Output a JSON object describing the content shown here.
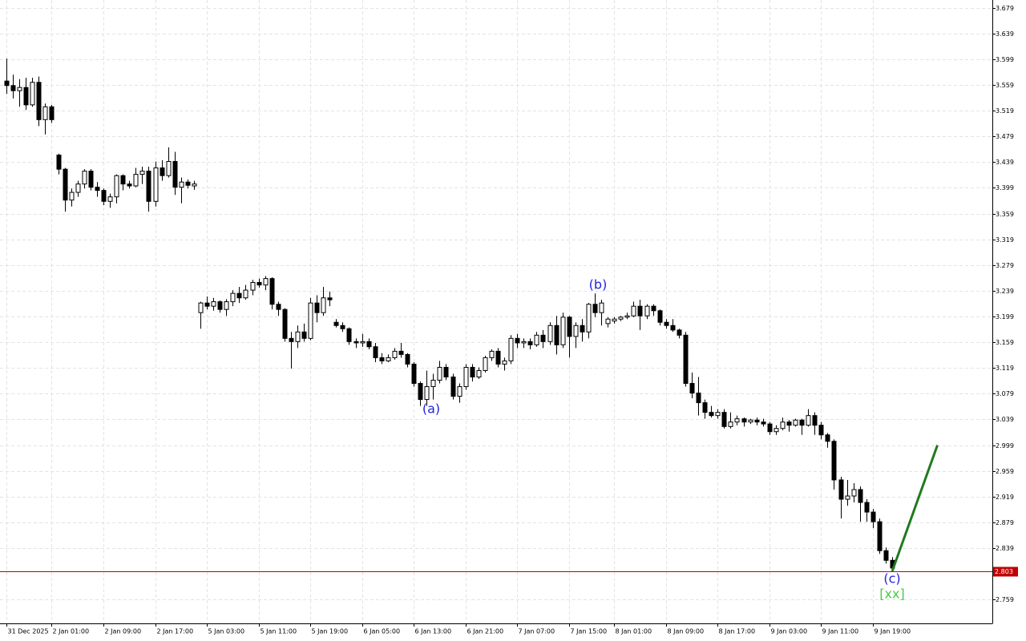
{
  "chart_data": {
    "type": "candlestick",
    "categories": [
      "31 Dec 2025",
      null,
      null,
      null,
      null,
      null,
      null,
      "2 Jan 01:00",
      null,
      null,
      null,
      null,
      null,
      null,
      null,
      "2 Jan 09:00",
      null,
      null,
      null,
      null,
      null,
      null,
      null,
      "2 Jan 17:00",
      null,
      null,
      null,
      null,
      null,
      null,
      null,
      "5 Jan 03:00",
      null,
      null,
      null,
      null,
      null,
      null,
      null,
      "5 Jan 11:00",
      null,
      null,
      null,
      null,
      null,
      null,
      null,
      "5 Jan 19:00",
      null,
      null,
      null,
      null,
      null,
      null,
      null,
      "6 Jan 05:00",
      null,
      null,
      null,
      null,
      null,
      null,
      null,
      "6 Jan 13:00",
      null,
      null,
      null,
      null,
      null,
      null,
      null,
      "6 Jan 21:00",
      null,
      null,
      null,
      null,
      null,
      null,
      null,
      "7 Jan 07:00",
      null,
      null,
      null,
      null,
      null,
      null,
      null,
      "7 Jan 15:00",
      null,
      null,
      null,
      null,
      null,
      null,
      "8 Jan 01:00",
      null,
      null,
      null,
      null,
      null,
      null,
      null,
      "8 Jan 09:00",
      null,
      null,
      null,
      null,
      null,
      null,
      null,
      "8 Jan 17:00",
      null,
      null,
      null,
      null,
      null,
      null,
      null,
      "9 Jan 03:00",
      null,
      null,
      null,
      null,
      null,
      null,
      null,
      "9 Jan 11:00",
      null,
      null,
      null,
      null,
      null,
      null,
      null,
      "9 Jan 19:00",
      null,
      null,
      null
    ],
    "open": [
      3.565,
      3.558,
      3.55,
      3.555,
      3.528,
      3.563,
      3.505,
      3.525,
      3.45,
      3.428,
      3.38,
      3.392,
      3.405,
      3.425,
      3.4,
      3.395,
      3.378,
      3.385,
      3.418,
      3.405,
      3.402,
      3.42,
      3.425,
      3.378,
      3.43,
      3.418,
      3.44,
      3.4,
      3.408,
      3.402,
      3.205,
      3.22,
      3.215,
      3.222,
      3.21,
      3.222,
      3.235,
      3.228,
      3.24,
      3.252,
      3.248,
      3.258,
      3.218,
      3.21,
      3.165,
      3.16,
      3.175,
      3.165,
      3.22,
      3.205,
      3.228,
      3.19,
      3.185,
      3.18,
      3.16,
      3.158,
      3.16,
      3.152,
      3.135,
      3.13,
      3.135,
      3.145,
      3.14,
      3.125,
      3.095,
      3.07,
      3.09,
      3.1,
      3.12,
      3.105,
      3.075,
      3.09,
      3.12,
      3.105,
      3.115,
      3.135,
      3.145,
      3.125,
      3.13,
      3.165,
      3.158,
      3.16,
      3.155,
      3.17,
      3.16,
      3.185,
      3.155,
      3.198,
      3.168,
      3.185,
      3.175,
      3.218,
      3.205,
      3.188,
      3.192,
      3.195,
      3.198,
      3.2,
      3.215,
      3.2,
      3.215,
      3.208,
      3.19,
      3.185,
      3.178,
      3.17,
      3.095,
      3.08,
      3.065,
      3.05,
      3.045,
      3.05,
      3.028,
      3.035,
      3.04,
      3.035,
      3.038,
      3.035,
      3.032,
      3.02,
      3.025,
      3.035,
      3.03,
      3.038,
      3.03,
      3.045,
      3.03,
      3.015,
      3.005,
      2.945,
      2.915,
      2.92,
      2.93,
      2.91,
      2.895,
      2.88,
      2.835,
      2.82
    ],
    "high": [
      3.6,
      3.575,
      3.568,
      3.57,
      3.57,
      3.572,
      3.53,
      3.528,
      3.452,
      3.43,
      3.398,
      3.41,
      3.428,
      3.428,
      3.408,
      3.398,
      3.39,
      3.42,
      3.42,
      3.41,
      3.43,
      3.432,
      3.432,
      3.44,
      3.442,
      3.462,
      3.455,
      3.415,
      3.412,
      3.41,
      3.222,
      3.23,
      3.228,
      3.224,
      3.226,
      3.24,
      3.245,
      3.248,
      3.256,
      3.258,
      3.262,
      3.26,
      3.222,
      3.212,
      3.175,
      3.185,
      3.188,
      3.228,
      3.232,
      3.245,
      3.238,
      3.195,
      3.19,
      3.182,
      3.165,
      3.172,
      3.165,
      3.158,
      3.142,
      3.14,
      3.15,
      3.158,
      3.142,
      3.128,
      3.098,
      3.115,
      3.11,
      3.13,
      3.125,
      3.11,
      3.095,
      3.125,
      3.125,
      3.12,
      3.138,
      3.148,
      3.15,
      3.135,
      3.17,
      3.172,
      3.165,
      3.165,
      3.175,
      3.178,
      3.19,
      3.2,
      3.205,
      3.2,
      3.19,
      3.195,
      3.22,
      3.235,
      3.225,
      3.198,
      3.198,
      3.2,
      3.205,
      3.222,
      3.225,
      3.218,
      3.218,
      3.21,
      3.195,
      3.195,
      3.18,
      3.175,
      3.112,
      3.105,
      3.07,
      3.06,
      3.055,
      3.055,
      3.05,
      3.045,
      3.042,
      3.04,
      3.042,
      3.04,
      3.035,
      3.03,
      3.042,
      3.038,
      3.04,
      3.04,
      3.055,
      3.05,
      3.035,
      3.018,
      3.008,
      2.95,
      2.945,
      2.94,
      2.935,
      2.915,
      2.9,
      2.885,
      2.84,
      2.825
    ],
    "low": [
      3.545,
      3.538,
      3.525,
      3.52,
      3.525,
      3.495,
      3.482,
      3.5,
      3.42,
      3.362,
      3.37,
      3.385,
      3.398,
      3.395,
      3.385,
      3.372,
      3.368,
      3.375,
      3.395,
      3.398,
      3.4,
      3.405,
      3.362,
      3.37,
      3.41,
      3.415,
      3.388,
      3.375,
      3.398,
      3.396,
      3.18,
      3.21,
      3.208,
      3.205,
      3.2,
      3.215,
      3.22,
      3.225,
      3.232,
      3.244,
      3.24,
      3.21,
      3.2,
      3.16,
      3.118,
      3.15,
      3.16,
      3.162,
      3.19,
      3.2,
      3.215,
      3.182,
      3.175,
      3.155,
      3.15,
      3.152,
      3.148,
      3.128,
      3.125,
      3.128,
      3.132,
      3.135,
      3.12,
      3.09,
      3.06,
      3.06,
      3.07,
      3.095,
      3.1,
      3.07,
      3.065,
      3.085,
      3.098,
      3.102,
      3.112,
      3.13,
      3.12,
      3.115,
      3.125,
      3.15,
      3.15,
      3.148,
      3.152,
      3.15,
      3.155,
      3.14,
      3.15,
      3.135,
      3.15,
      3.16,
      3.165,
      3.198,
      3.185,
      3.182,
      3.188,
      3.192,
      3.195,
      3.198,
      3.178,
      3.195,
      3.2,
      3.185,
      3.18,
      3.175,
      3.165,
      3.09,
      3.072,
      3.045,
      3.04,
      3.042,
      3.04,
      3.025,
      3.025,
      3.03,
      3.028,
      3.032,
      3.03,
      3.028,
      3.015,
      3.015,
      3.022,
      3.02,
      3.028,
      3.015,
      3.028,
      3.015,
      3.008,
      2.995,
      2.93,
      2.885,
      2.905,
      2.91,
      2.88,
      2.88,
      2.87,
      2.83,
      2.815,
      2.802
    ],
    "close": [
      3.558,
      3.55,
      3.555,
      3.528,
      3.563,
      3.505,
      3.525,
      3.505,
      3.428,
      3.38,
      3.392,
      3.405,
      3.425,
      3.4,
      3.395,
      3.378,
      3.385,
      3.418,
      3.405,
      3.402,
      3.42,
      3.425,
      3.378,
      3.43,
      3.418,
      3.44,
      3.4,
      3.408,
      3.403,
      3.405,
      3.22,
      3.215,
      3.222,
      3.21,
      3.222,
      3.235,
      3.228,
      3.24,
      3.252,
      3.248,
      3.258,
      3.218,
      3.21,
      3.165,
      3.16,
      3.175,
      3.165,
      3.22,
      3.205,
      3.228,
      3.225,
      3.185,
      3.18,
      3.16,
      3.158,
      3.16,
      3.152,
      3.135,
      3.13,
      3.135,
      3.145,
      3.14,
      3.125,
      3.095,
      3.07,
      3.09,
      3.1,
      3.12,
      3.105,
      3.075,
      3.09,
      3.12,
      3.105,
      3.115,
      3.135,
      3.145,
      3.125,
      3.13,
      3.165,
      3.158,
      3.16,
      3.155,
      3.17,
      3.16,
      3.185,
      3.155,
      3.198,
      3.168,
      3.185,
      3.175,
      3.218,
      3.205,
      3.22,
      3.195,
      3.195,
      3.198,
      3.2,
      3.215,
      3.2,
      3.215,
      3.208,
      3.19,
      3.185,
      3.178,
      3.17,
      3.095,
      3.08,
      3.065,
      3.05,
      3.045,
      3.05,
      3.028,
      3.035,
      3.04,
      3.035,
      3.038,
      3.035,
      3.032,
      3.02,
      3.025,
      3.035,
      3.03,
      3.038,
      3.03,
      3.045,
      3.03,
      3.015,
      3.005,
      2.945,
      2.915,
      2.92,
      2.93,
      2.91,
      2.895,
      2.88,
      2.835,
      2.82,
      2.808
    ],
    "ylim": [
      2.722,
      3.691
    ],
    "yticks": [
      3.679,
      3.639,
      3.599,
      3.559,
      3.519,
      3.479,
      3.439,
      3.399,
      3.359,
      3.319,
      3.279,
      3.239,
      3.199,
      3.159,
      3.119,
      3.079,
      3.039,
      2.999,
      2.959,
      2.919,
      2.879,
      2.839,
      2.759
    ],
    "grid": true,
    "bull_color": "#ffffff",
    "bear_color": "#000000",
    "price_line": {
      "value": 2.803,
      "color": "#c00000"
    },
    "forecast": {
      "x": [
        137,
        144
      ],
      "values": [
        2.803,
        2.999
      ],
      "color": "#1f7a1f"
    },
    "annotations": [
      {
        "text": "(a)",
        "color": "#2222dd"
      },
      {
        "text": "(b)",
        "color": "#2222dd"
      },
      {
        "text": "(c)",
        "color": "#2222dd"
      },
      {
        "text": "[xx]",
        "color": "#44cc44"
      }
    ]
  }
}
